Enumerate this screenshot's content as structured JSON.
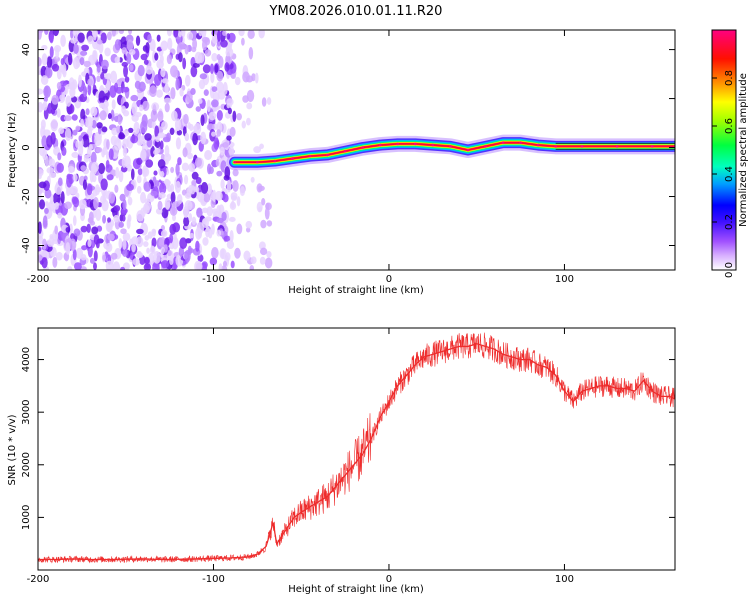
{
  "chart_data": [
    {
      "type": "heatmap",
      "title": "YM08.2026.010.01.11.R20",
      "xlabel": "Height of straight line (km)",
      "ylabel": "Frequency (Hz)",
      "xlim": [
        -200,
        163
      ],
      "ylim": [
        -50,
        48
      ],
      "xticks": [
        -200,
        -100,
        0,
        100
      ],
      "yticks": [
        -40,
        -20,
        0,
        20,
        40
      ],
      "colorbar": {
        "label": "Normalized spectral amplitude",
        "range": [
          0.0,
          1.0
        ],
        "ticks": [
          0.0,
          0.2,
          0.4,
          0.6,
          0.8
        ],
        "tick_labels": [
          "0.0",
          "0.2",
          "0.4",
          "0.6",
          "0.8"
        ],
        "colors": [
          "#ffffff",
          "#c080ff",
          "#6020ff",
          "#0000ff",
          "#00c0ff",
          "#00ff80",
          "#80ff00",
          "#ffff00",
          "#ff8000",
          "#ff0000",
          "#ff0080"
        ]
      },
      "noise_region_x": [
        -200,
        -88
      ],
      "signal_ridge": {
        "x": [
          -88,
          -75,
          -65,
          -55,
          -45,
          -35,
          -25,
          -15,
          -5,
          5,
          15,
          25,
          35,
          45,
          55,
          65,
          75,
          85,
          95,
          110,
          130,
          150,
          163
        ],
        "freq": [
          -6,
          -6,
          -5.5,
          -4.5,
          -3.5,
          -3,
          -1.5,
          0,
          1,
          1.5,
          1.5,
          1,
          0.5,
          -1,
          0.5,
          2,
          2,
          1,
          0.5,
          0.5,
          0.5,
          0.5,
          0.5
        ]
      }
    },
    {
      "type": "line",
      "xlabel": "Height of straight line (km)",
      "ylabel": "SNR (10 * v/v)",
      "xlim": [
        -200,
        163
      ],
      "ylim": [
        0,
        4600
      ],
      "xticks": [
        -200,
        -100,
        0,
        100
      ],
      "yticks": [
        1000,
        2000,
        3000,
        4000
      ],
      "series": [
        {
          "name": "SNR",
          "color": "#ee2c2c",
          "x": [
            -200,
            -190,
            -180,
            -170,
            -160,
            -150,
            -140,
            -130,
            -120,
            -110,
            -100,
            -90,
            -80,
            -75,
            -70,
            -66,
            -64,
            -62,
            -58,
            -54,
            -50,
            -45,
            -40,
            -35,
            -30,
            -25,
            -20,
            -15,
            -10,
            -5,
            0,
            5,
            10,
            15,
            20,
            25,
            30,
            35,
            40,
            45,
            50,
            55,
            60,
            65,
            70,
            75,
            80,
            85,
            90,
            95,
            100,
            105,
            110,
            115,
            120,
            125,
            130,
            135,
            140,
            145,
            150,
            155,
            160,
            163
          ],
          "y": [
            200,
            200,
            210,
            200,
            200,
            205,
            210,
            200,
            205,
            210,
            220,
            230,
            250,
            300,
            450,
            900,
            500,
            600,
            800,
            1000,
            1100,
            1200,
            1300,
            1400,
            1600,
            1800,
            2000,
            2200,
            2500,
            2900,
            3200,
            3500,
            3700,
            3900,
            4050,
            4100,
            4150,
            4200,
            4250,
            4250,
            4300,
            4250,
            4200,
            4100,
            4050,
            4000,
            4000,
            3900,
            3850,
            3700,
            3400,
            3200,
            3400,
            3450,
            3500,
            3500,
            3450,
            3450,
            3400,
            3600,
            3400,
            3300,
            3300,
            3250
          ]
        }
      ]
    }
  ]
}
